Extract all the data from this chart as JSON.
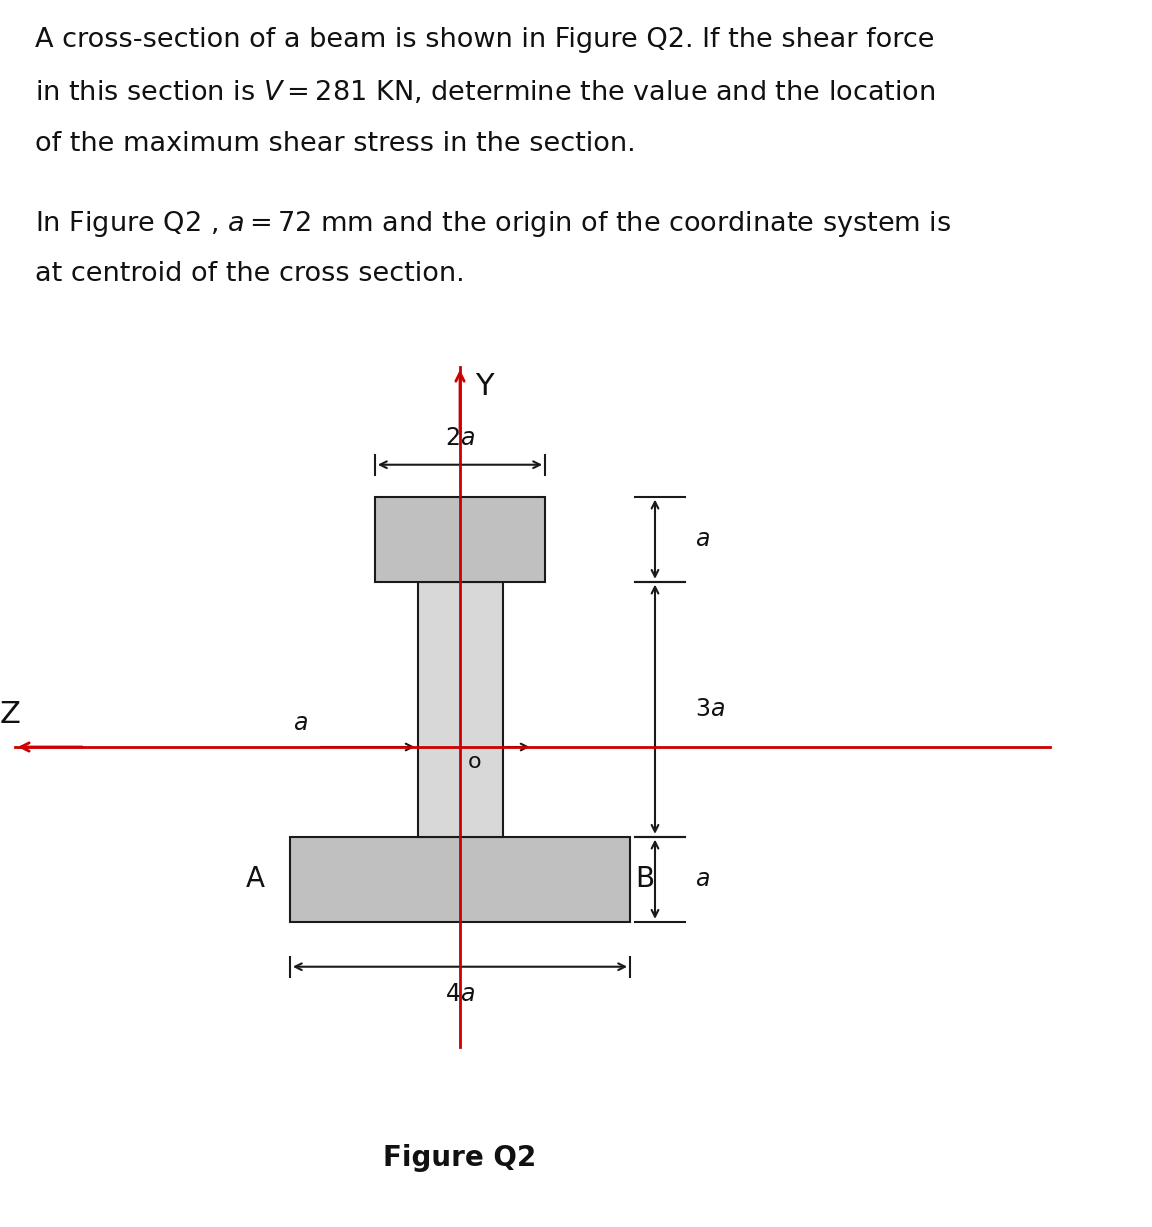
{
  "bg_color": "#ffffff",
  "shape_fill": "#c0c0c0",
  "web_fill": "#d8d8d8",
  "shape_edge": "#1a1a1a",
  "red_color": "#cc0000",
  "text_color": "#111111",
  "dim_color": "#1a1a1a",
  "line1": "A cross-section of a beam is shown in Figure Q2. If the shear force",
  "line2": "in this section is $V = 281$ KN, determine the value and the location",
  "line3": "of the maximum shear stress in the section.",
  "line4": "In Figure Q2 , $a = 72$ mm and the origin of the coordinate system is",
  "line5": "at centroid of the cross section.",
  "figure_caption": "Figure Q2",
  "label_Y": "Y",
  "label_Z": "Z",
  "label_o": "o",
  "label_A": "A",
  "label_B": "B",
  "label_a": "$a$",
  "label_2a": "$2a$",
  "label_3a": "$3a$",
  "label_4a": "$4a$"
}
